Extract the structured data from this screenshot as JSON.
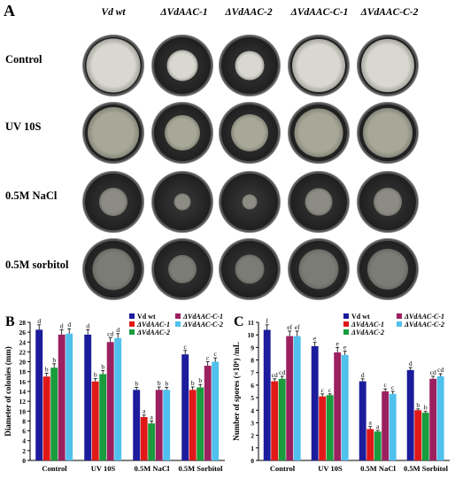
{
  "panel_a": {
    "letter": "A",
    "columns": [
      "Vd wt",
      "ΔVdAAC-1",
      "ΔVdAAC-2",
      "ΔVdAAC-C-1",
      "ΔVdAAC-C-2"
    ],
    "rows": [
      {
        "label": "Control",
        "colony_fraction": [
          0.95,
          0.55,
          0.52,
          0.93,
          0.93
        ],
        "color": "#d8d8d0"
      },
      {
        "label": "UV 10S",
        "colony_fraction": [
          0.9,
          0.62,
          0.66,
          0.86,
          0.88
        ],
        "color": "#a8a898"
      },
      {
        "label": "0.5M NaCl",
        "colony_fraction": [
          0.5,
          0.3,
          0.26,
          0.48,
          0.5
        ],
        "color": "#8c8c84"
      },
      {
        "label": "0.5M sorbitol",
        "colony_fraction": [
          0.74,
          0.5,
          0.52,
          0.7,
          0.72
        ],
        "color": "#7c7c76"
      }
    ]
  },
  "chart_data": [
    {
      "letter": "B",
      "type": "bar",
      "categories": [
        "Control",
        "UV 10S",
        "0.5M NaCl",
        "0.5M Sorbitol"
      ],
      "ylabel": "Diameter of colonies (mm)",
      "ylim": [
        0,
        28
      ],
      "yticks": [
        "0",
        "2",
        "4",
        "6",
        "8",
        "10",
        "12",
        "14",
        "16",
        "18",
        "20",
        "22",
        "24",
        "26",
        "28"
      ],
      "legend": "top-right",
      "series": [
        {
          "name": "Vd wt",
          "color": "#1c1c9c",
          "values": [
            26.5,
            25.5,
            14.3,
            21.5
          ],
          "err": [
            1.0,
            1.0,
            0.5,
            0.8
          ],
          "letters": [
            "d",
            "d",
            "b",
            "c"
          ]
        },
        {
          "name": "ΔVdAAC-1",
          "color": "#e01818",
          "values": [
            17.0,
            16.0,
            8.8,
            14.3
          ],
          "err": [
            0.7,
            0.6,
            0.4,
            0.6
          ],
          "letters": [
            "b",
            "b",
            "a",
            "b"
          ]
        },
        {
          "name": "ΔVdAAC-2",
          "color": "#189c3c",
          "values": [
            18.8,
            17.5,
            7.5,
            14.8
          ],
          "err": [
            0.8,
            0.7,
            0.5,
            0.6
          ],
          "letters": [
            "b",
            "b",
            "a",
            "b"
          ]
        },
        {
          "name": "ΔVdAAC-C-1",
          "color": "#9c2060",
          "values": [
            25.5,
            24.0,
            14.3,
            19.2
          ],
          "err": [
            1.0,
            0.9,
            0.6,
            0.8
          ],
          "letters": [
            "d",
            "cd",
            "b",
            "c"
          ]
        },
        {
          "name": "ΔVdAAC-C-2",
          "color": "#50c0ec",
          "values": [
            25.7,
            24.8,
            14.3,
            20.0
          ],
          "err": [
            1.0,
            0.9,
            0.5,
            0.8
          ],
          "letters": [
            "d",
            "d",
            "b",
            "c"
          ]
        }
      ]
    },
    {
      "letter": "C",
      "type": "bar",
      "categories": [
        "Control",
        "UV 10S",
        "0.5M NaCl",
        "0.5M Sorbitol"
      ],
      "ylabel": "Number of spores (×10⁶) /mL",
      "ylim": [
        0,
        11
      ],
      "yticks": [
        "0",
        "1",
        "2",
        "3",
        "4",
        "5",
        "6",
        "7",
        "8",
        "9",
        "10",
        "11"
      ],
      "legend": "top-right",
      "series": [
        {
          "name": "Vd wt",
          "color": "#1c1c9c",
          "values": [
            10.4,
            9.1,
            6.3,
            7.2
          ],
          "err": [
            0.4,
            0.3,
            0.2,
            0.2
          ],
          "letters": [
            "f",
            "e",
            "d",
            "d"
          ]
        },
        {
          "name": "ΔVdAAC-1",
          "color": "#e01818",
          "values": [
            6.3,
            5.1,
            2.5,
            4.0
          ],
          "err": [
            0.2,
            0.2,
            0.2,
            0.1
          ],
          "letters": [
            "cd",
            "c",
            "a",
            "b"
          ]
        },
        {
          "name": "ΔVdAAC-2",
          "color": "#189c3c",
          "values": [
            6.5,
            5.2,
            2.3,
            3.8
          ],
          "err": [
            0.2,
            0.1,
            0.1,
            0.1
          ],
          "letters": [
            "cd",
            "c",
            "a",
            "b"
          ]
        },
        {
          "name": "ΔVdAAC-C-1",
          "color": "#9c2060",
          "values": [
            9.9,
            8.6,
            5.5,
            6.5
          ],
          "err": [
            0.4,
            0.4,
            0.2,
            0.2
          ],
          "letters": [
            "ef",
            "e",
            "c",
            "cd"
          ]
        },
        {
          "name": "ΔVdAAC-C-2",
          "color": "#50c0ec",
          "values": [
            9.9,
            8.4,
            5.3,
            6.7
          ],
          "err": [
            0.4,
            0.3,
            0.2,
            0.2
          ],
          "letters": [
            "ef",
            "e",
            "c",
            "cd"
          ]
        }
      ]
    }
  ]
}
